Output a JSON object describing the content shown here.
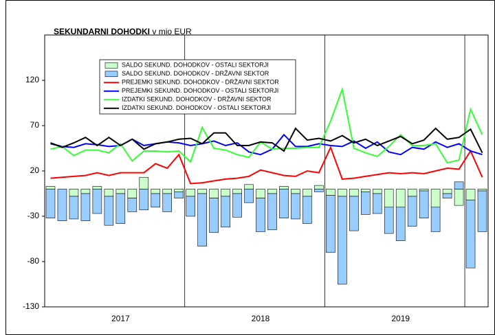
{
  "chart_data": {
    "type": "bar_line",
    "title": "SEKUNDARNI DOHODKI",
    "subtitle": "v mio EUR",
    "categories": [
      null,
      null,
      null,
      null,
      null,
      null,
      "2017",
      null,
      null,
      null,
      null,
      null,
      null,
      null,
      null,
      null,
      null,
      null,
      "2018",
      null,
      null,
      null,
      null,
      null,
      null,
      null,
      null,
      null,
      null,
      null,
      "2019",
      null,
      null,
      null,
      null,
      null,
      null,
      null
    ],
    "ylim": [
      -130,
      170
    ],
    "yticks": [
      -130,
      -80,
      -30,
      20,
      70,
      120
    ],
    "year_dividers": true,
    "series": [
      {
        "name": "SALDO SEKUND. DOHODKOV - OSTALI SEKTORJI",
        "type": "bar",
        "color": "#ccffcc",
        "values": [
          3,
          0,
          -8,
          -5,
          3,
          -8,
          -5,
          -10,
          13,
          -5,
          -5,
          -3,
          -8,
          -5,
          -10,
          -8,
          -5,
          5,
          -10,
          -5,
          3,
          -5,
          -8,
          4,
          -7,
          -8,
          -8,
          -3,
          -5,
          -20,
          -20,
          -8,
          -2,
          -20,
          -5,
          -18,
          -12,
          -2
        ]
      },
      {
        "name": "SALDO SEKUND. DOHODKOV - DRŽAVNI SEKTOR",
        "type": "bar",
        "color": "#99ccff",
        "values": [
          -32,
          -35,
          -25,
          -30,
          -27,
          -32,
          -33,
          -15,
          -23,
          -15,
          -20,
          -7,
          -22,
          -58,
          -38,
          -34,
          -26,
          -15,
          -37,
          -40,
          -32,
          -28,
          -30,
          -3,
          -63,
          -97,
          -38,
          -25,
          -22,
          -29,
          -37,
          -33,
          -30,
          -27,
          -5,
          8,
          -75,
          -45
        ]
      },
      {
        "name": "PREJEMKI SEKUND. DOHODKOV - DRŽAVNI SEKTOR",
        "type": "line",
        "color": "#ff0000",
        "values": [
          12,
          13,
          14,
          15,
          18,
          15,
          18,
          18,
          18,
          28,
          23,
          38,
          6,
          7,
          9,
          11,
          12,
          14,
          21,
          18,
          15,
          14,
          20,
          18,
          46,
          11,
          12,
          14,
          16,
          18,
          17,
          18,
          17,
          20,
          23,
          22,
          42,
          13
        ]
      },
      {
        "name": "PREJEMKI SEKUND. DOHODKOV - OSTALI SEKTORJI",
        "type": "line",
        "color": "#0000ff",
        "values": [
          50,
          47,
          46,
          50,
          49,
          47,
          48,
          55,
          48,
          50,
          52,
          51,
          48,
          50,
          53,
          48,
          51,
          41,
          38,
          44,
          60,
          47,
          47,
          50,
          48,
          47,
          53,
          45,
          52,
          41,
          38,
          46,
          44,
          52,
          46,
          50,
          42,
          38
        ]
      },
      {
        "name": "IZDATKI SEKUND. DOHODKOV - DRŽAVNI SEKTOR",
        "type": "line",
        "color": "#33ff33",
        "values": [
          44,
          47,
          37,
          43,
          43,
          40,
          50,
          31,
          42,
          42,
          41,
          42,
          30,
          68,
          45,
          43,
          38,
          35,
          52,
          44,
          45,
          45,
          46,
          46,
          75,
          110,
          45,
          40,
          36,
          47,
          60,
          48,
          48,
          50,
          29,
          32,
          88,
          60
        ]
      },
      {
        "name": "IZDATKI SEKUND. DOHODKOV - OSTALI SEKTORJI",
        "type": "line",
        "color": "#000000",
        "values": [
          51,
          46,
          51,
          57,
          48,
          57,
          48,
          55,
          44,
          50,
          52,
          55,
          56,
          50,
          62,
          62,
          48,
          48,
          52,
          51,
          42,
          67,
          54,
          56,
          53,
          59,
          51,
          55,
          48,
          53,
          58,
          50,
          54,
          67,
          55,
          57,
          66,
          40
        ]
      }
    ]
  }
}
